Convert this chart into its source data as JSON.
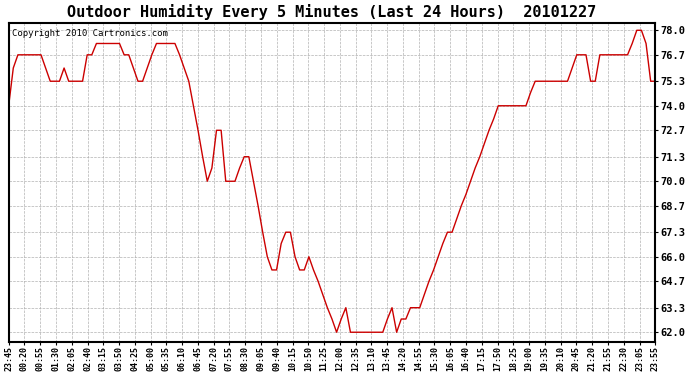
{
  "title": "Outdoor Humidity Every 5 Minutes (Last 24 Hours)  20101227",
  "copyright": "Copyright 2010 Cartronics.com",
  "ylabel_ticks": [
    62.0,
    63.3,
    64.7,
    66.0,
    67.3,
    68.7,
    70.0,
    71.3,
    72.7,
    74.0,
    75.3,
    76.7,
    78.0
  ],
  "ylim": [
    61.5,
    78.4
  ],
  "line_color": "#cc0000",
  "bg_color": "#ffffff",
  "plot_bg_color": "#ffffff",
  "title_fontsize": 11,
  "x_labels": [
    "23:45",
    "00:20",
    "00:55",
    "01:30",
    "02:05",
    "02:40",
    "03:15",
    "03:50",
    "04:25",
    "05:00",
    "05:35",
    "06:10",
    "06:45",
    "07:20",
    "07:55",
    "08:30",
    "09:05",
    "09:40",
    "10:15",
    "10:50",
    "11:25",
    "12:00",
    "12:35",
    "13:10",
    "13:45",
    "14:20",
    "14:55",
    "15:30",
    "16:05",
    "16:40",
    "17:15",
    "17:50",
    "18:25",
    "19:00",
    "19:35",
    "20:10",
    "20:45",
    "21:20",
    "21:55",
    "22:30",
    "23:05",
    "23:55"
  ],
  "humidity": [
    74.0,
    76.0,
    76.7,
    76.7,
    76.7,
    76.7,
    76.7,
    76.7,
    76.0,
    75.3,
    75.3,
    75.3,
    76.0,
    75.3,
    75.3,
    75.3,
    75.3,
    76.7,
    76.7,
    77.3,
    77.3,
    77.3,
    77.3,
    77.3,
    77.3,
    76.7,
    76.7,
    76.0,
    75.3,
    75.3,
    76.0,
    76.7,
    77.3,
    77.3,
    77.3,
    77.3,
    77.3,
    76.7,
    76.0,
    75.3,
    74.0,
    72.7,
    71.3,
    70.0,
    70.7,
    72.7,
    72.7,
    70.0,
    70.0,
    70.0,
    70.7,
    71.3,
    71.3,
    70.0,
    68.7,
    67.3,
    66.0,
    65.3,
    65.3,
    66.7,
    67.3,
    67.3,
    66.0,
    65.3,
    65.3,
    66.0,
    65.3,
    64.7,
    64.0,
    63.3,
    62.7,
    62.0,
    62.7,
    63.3,
    62.0,
    62.0,
    62.0,
    62.0,
    62.0,
    62.0,
    62.0,
    62.0,
    62.7,
    63.3,
    62.0,
    62.7,
    62.7,
    63.3,
    63.3,
    63.3,
    64.0,
    64.7,
    65.3,
    66.0,
    66.7,
    67.3,
    67.3,
    68.0,
    68.7,
    69.3,
    70.0,
    70.7,
    71.3,
    72.0,
    72.7,
    73.3,
    74.0,
    74.0,
    74.0,
    74.0,
    74.0,
    74.0,
    74.0,
    74.7,
    75.3,
    75.3,
    75.3,
    75.3,
    75.3,
    75.3,
    75.3,
    75.3,
    76.0,
    76.7,
    76.7,
    76.7,
    75.3,
    75.3,
    76.7,
    76.7,
    76.7,
    76.7,
    76.7,
    76.7,
    76.7,
    77.3,
    78.0,
    78.0,
    77.3,
    75.3,
    75.3
  ]
}
